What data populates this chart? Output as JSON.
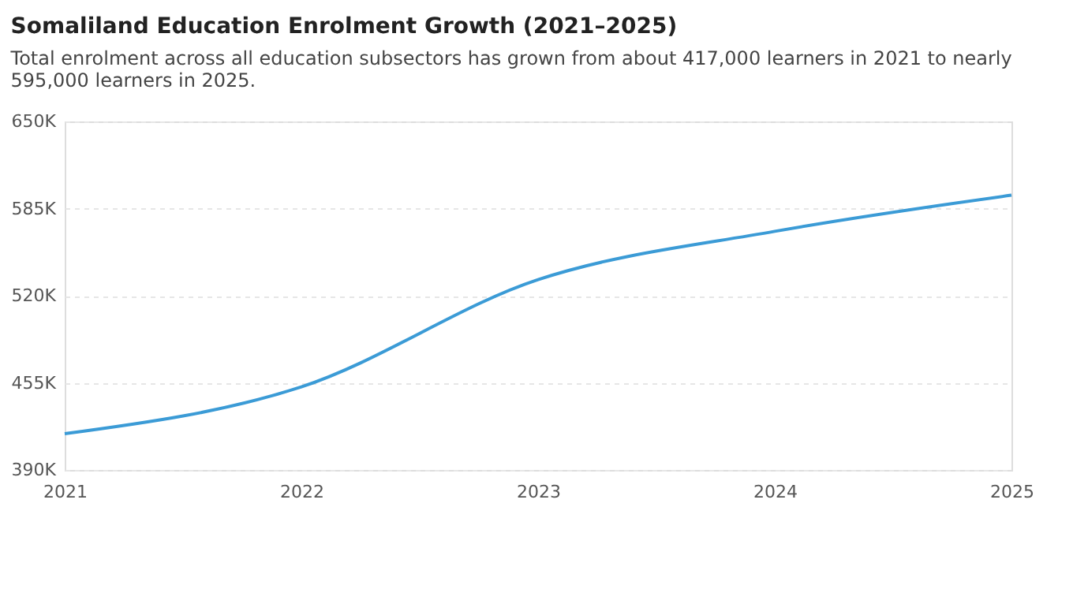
{
  "chart_data": {
    "type": "line",
    "title": "Somaliland Education Enrolment Growth (2021–2025)",
    "subtitle": [
      "Total enrolment across all education subsectors has grown from about 417,000 learners in 2021 to nearly",
      "595,000 learners in 2025."
    ],
    "x": [
      2021,
      2022,
      2023,
      2024,
      2025
    ],
    "series": [
      {
        "color": "#3b9bd6",
        "values": [
          417000,
          452000,
          532000,
          568000,
          595000
        ]
      }
    ],
    "xlim": [
      2021,
      2025
    ],
    "xticks": [
      2021,
      2022,
      2023,
      2024,
      2025
    ],
    "ylim": [
      390000,
      650000
    ],
    "yticks": [
      {
        "value": 390000,
        "label": "390K"
      },
      {
        "value": 455000,
        "label": "455K"
      },
      {
        "value": 520000,
        "label": "520K"
      },
      {
        "value": 585000,
        "label": "585K"
      },
      {
        "value": 650000,
        "label": "650K"
      }
    ],
    "grid": "y",
    "marker": "none",
    "line_style": "solid"
  }
}
